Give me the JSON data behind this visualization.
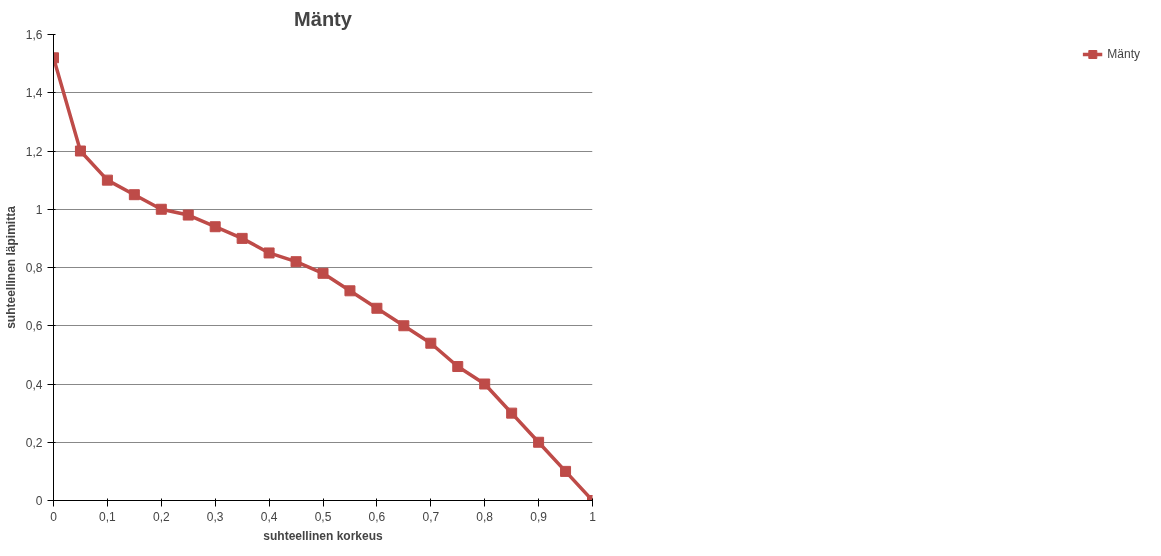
{
  "chart_data": {
    "type": "line",
    "title": "Mänty",
    "xlabel": "suhteellinen korkeus",
    "ylabel": "suhteellinen läpimitta",
    "x": [
      0,
      0.05,
      0.1,
      0.15,
      0.2,
      0.25,
      0.3,
      0.35,
      0.4,
      0.45,
      0.5,
      0.55,
      0.6,
      0.65,
      0.7,
      0.75,
      0.8,
      0.85,
      0.9,
      0.95,
      1
    ],
    "series": [
      {
        "name": "Mänty",
        "color": "#be4b48",
        "values": [
          1.52,
          1.2,
          1.1,
          1.05,
          1.0,
          0.98,
          0.94,
          0.9,
          0.85,
          0.82,
          0.78,
          0.72,
          0.66,
          0.6,
          0.54,
          0.46,
          0.4,
          0.3,
          0.2,
          0.1,
          0.0
        ]
      }
    ],
    "xlim": [
      0,
      1
    ],
    "xticks": [
      0,
      {
        "value": 0.1,
        "label": "0,1"
      },
      {
        "value": 0.2,
        "label": "0,2"
      },
      {
        "value": 0.3,
        "label": "0,3"
      },
      {
        "value": 0.4,
        "label": "0,4"
      },
      {
        "value": 0.5,
        "label": "0,5"
      },
      {
        "value": 0.6,
        "label": "0,6"
      },
      {
        "value": 0.7,
        "label": "0,7"
      },
      {
        "value": 0.8,
        "label": "0,8"
      },
      {
        "value": 0.9,
        "label": "0,9"
      },
      1
    ],
    "ylim": [
      0,
      1.6
    ],
    "yticks": [
      0,
      {
        "value": 0.2,
        "label": "0,2"
      },
      {
        "value": 0.4,
        "label": "0,4"
      },
      {
        "value": 0.6,
        "label": "0,6"
      },
      {
        "value": 0.8,
        "label": "0,8"
      },
      1,
      {
        "value": 1.2,
        "label": "1,2"
      },
      {
        "value": 1.4,
        "label": "1,4"
      },
      {
        "value": 1.6,
        "label": "1,6"
      }
    ],
    "grid": "y",
    "legend": "right",
    "marker": "square",
    "line_style": "solid"
  }
}
